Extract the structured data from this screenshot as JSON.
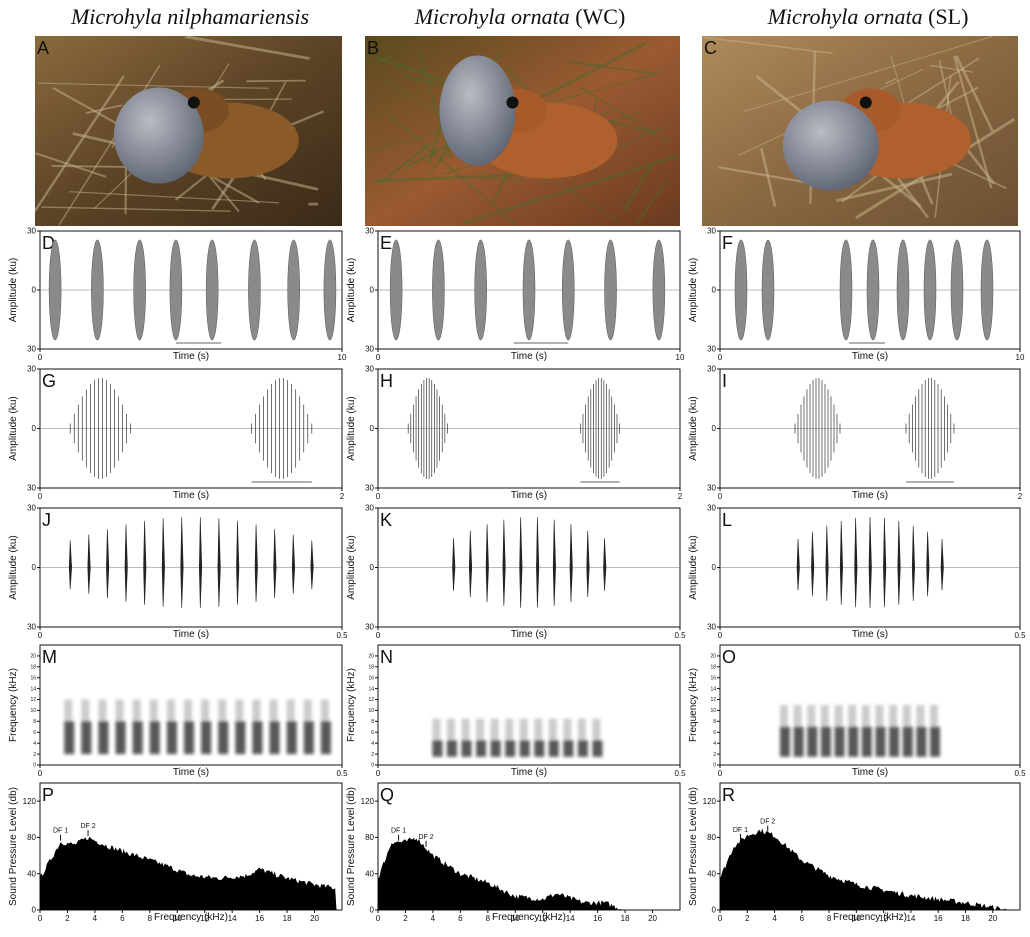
{
  "columns": [
    {
      "species": "Microhyla nilphamariensis"
    },
    {
      "species": "Microhyla ornata",
      "population": "(WC)"
    },
    {
      "species": "Microhyla ornata",
      "population": "(SL)"
    }
  ],
  "rows": [
    {
      "letters": [
        "A",
        "B",
        "C"
      ]
    },
    {
      "letters": [
        "D",
        "E",
        "F"
      ],
      "y_label": "Amplitude (ku)",
      "x_label": "Time (s)",
      "ylim": [
        -30,
        30
      ],
      "yticks": [
        30,
        0,
        {
          "value": -30,
          "label": "30"
        }
      ],
      "xlim": [
        0,
        10
      ],
      "xticks": [
        0,
        10
      ]
    },
    {
      "letters": [
        "G",
        "H",
        "I"
      ],
      "y_label": "Amplitude (ku)",
      "x_label": "Time (s)",
      "ylim": [
        -30,
        30
      ],
      "yticks": [
        30,
        0,
        {
          "value": -30,
          "label": "30"
        }
      ],
      "xlim": [
        0,
        2
      ],
      "xticks": [
        0,
        2
      ]
    },
    {
      "letters": [
        "J",
        "K",
        "L"
      ],
      "y_label": "Amplitude (ku)",
      "x_label": "Time (s)",
      "ylim": [
        -30,
        30
      ],
      "yticks": [
        30,
        0,
        {
          "value": -30,
          "label": "30"
        }
      ],
      "xlim": [
        0,
        0.5
      ],
      "xticks": [
        0,
        0.5
      ]
    },
    {
      "letters": [
        "M",
        "N",
        "O"
      ],
      "y_label": "Frequency (kHz)",
      "x_label": "Time (s)",
      "ylim": [
        0,
        22
      ],
      "yticks": [
        0,
        2,
        4,
        6,
        8,
        10,
        12,
        14,
        16,
        18,
        20
      ],
      "xlim": [
        0,
        0.5
      ],
      "xticks": [
        0,
        0.5
      ]
    },
    {
      "letters": [
        "P",
        "Q",
        "R"
      ],
      "y_label": "Sound Pressure Level (db)",
      "x_label": "Frequency (kHz)",
      "ylim": [
        0,
        140
      ],
      "yticks": [
        0,
        40,
        80,
        120
      ],
      "xlim": [
        0,
        22
      ],
      "xticks": [
        0,
        2,
        4,
        6,
        8,
        10,
        12,
        14,
        16,
        18,
        20
      ],
      "annotations": [
        "DF 1",
        "DF 2"
      ]
    }
  ]
}
